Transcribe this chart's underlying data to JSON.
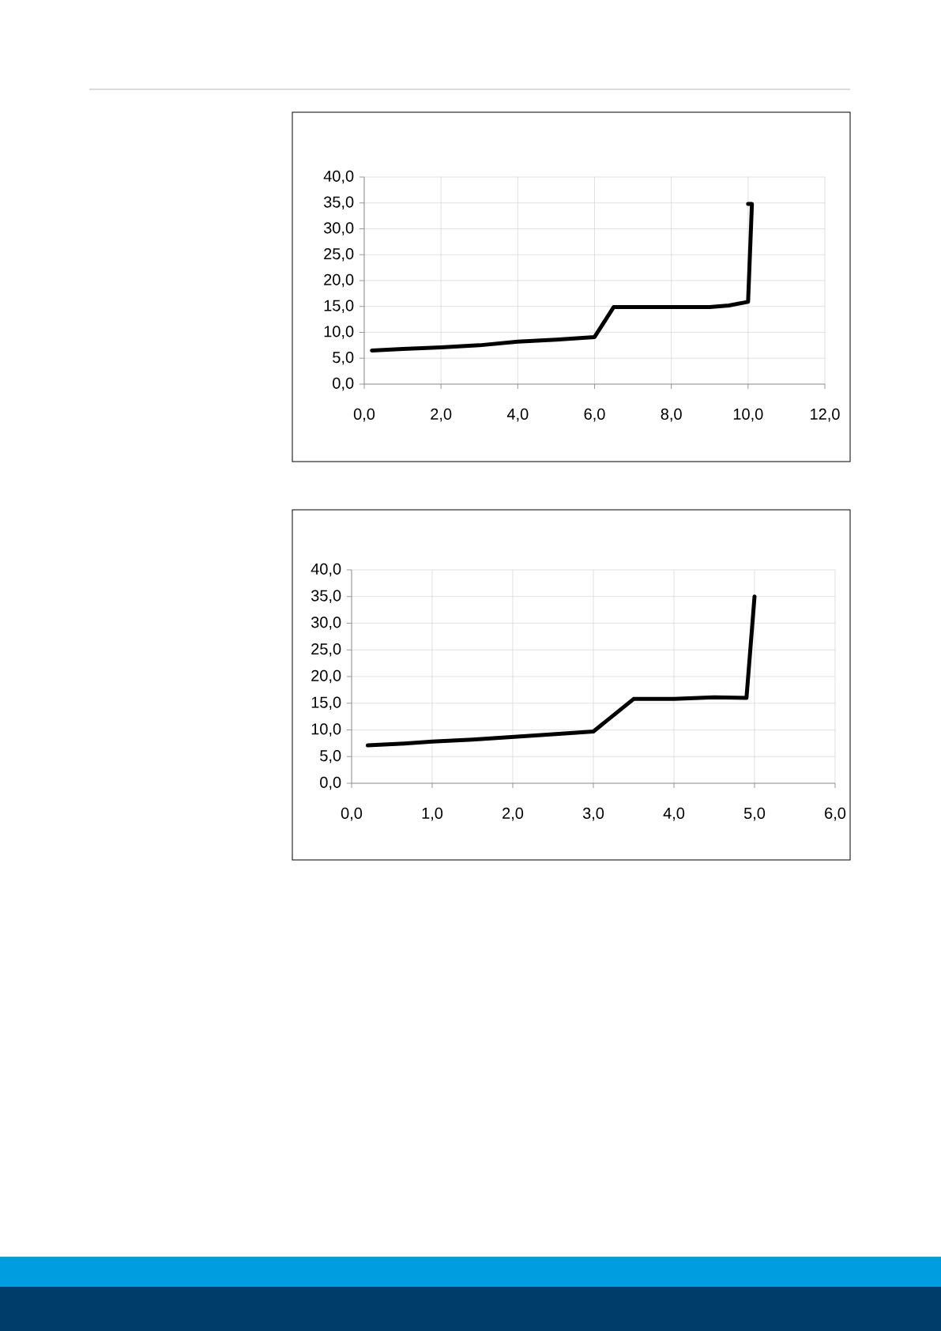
{
  "chart_data": [
    {
      "type": "line",
      "x": [
        0.2,
        1.0,
        2.0,
        3.0,
        4.0,
        5.0,
        6.0,
        6.5,
        9.0,
        9.5,
        10.0,
        10.1,
        10.0
      ],
      "values": [
        6.5,
        6.8,
        7.1,
        7.5,
        8.2,
        8.6,
        9.1,
        14.9,
        14.9,
        15.2,
        15.9,
        34.8,
        34.8
      ],
      "color": "#000000",
      "xlim": [
        0,
        12
      ],
      "ylim": [
        0,
        40
      ],
      "grid": true,
      "xticks": [
        {
          "value": 0,
          "label": "0,0"
        },
        {
          "value": 2,
          "label": "2,0"
        },
        {
          "value": 4,
          "label": "4,0"
        },
        {
          "value": 6,
          "label": "6,0"
        },
        {
          "value": 8,
          "label": "8,0"
        },
        {
          "value": 10,
          "label": "10,0"
        },
        {
          "value": 12,
          "label": "12,0"
        }
      ],
      "yticks": [
        {
          "value": 0,
          "label": "0,0"
        },
        {
          "value": 5,
          "label": "5,0"
        },
        {
          "value": 10,
          "label": "10,0"
        },
        {
          "value": 15,
          "label": "15,0"
        },
        {
          "value": 20,
          "label": "20,0"
        },
        {
          "value": 25,
          "label": "25,0"
        },
        {
          "value": 30,
          "label": "30,0"
        },
        {
          "value": 35,
          "label": "35,0"
        },
        {
          "value": 40,
          "label": "40,0"
        }
      ]
    },
    {
      "type": "line",
      "x": [
        0.2,
        0.6,
        1.0,
        1.5,
        2.0,
        2.5,
        3.0,
        3.5,
        4.0,
        4.5,
        4.9,
        5.0
      ],
      "values": [
        7.1,
        7.4,
        7.8,
        8.2,
        8.7,
        9.2,
        9.7,
        15.8,
        15.8,
        16.1,
        16.0,
        35.0
      ],
      "color": "#000000",
      "xlim": [
        0,
        6
      ],
      "ylim": [
        0,
        40
      ],
      "grid": true,
      "xticks": [
        {
          "value": 0,
          "label": "0,0"
        },
        {
          "value": 1,
          "label": "1,0"
        },
        {
          "value": 2,
          "label": "2,0"
        },
        {
          "value": 3,
          "label": "3,0"
        },
        {
          "value": 4,
          "label": "4,0"
        },
        {
          "value": 5,
          "label": "5,0"
        },
        {
          "value": 6,
          "label": "6,0"
        }
      ],
      "yticks": [
        {
          "value": 0,
          "label": "0,0"
        },
        {
          "value": 5,
          "label": "5,0"
        },
        {
          "value": 10,
          "label": "10,0"
        },
        {
          "value": 15,
          "label": "15,0"
        },
        {
          "value": 20,
          "label": "20,0"
        },
        {
          "value": 25,
          "label": "25,0"
        },
        {
          "value": 30,
          "label": "30,0"
        },
        {
          "value": 35,
          "label": "35,0"
        },
        {
          "value": 40,
          "label": "40,0"
        }
      ]
    }
  ]
}
